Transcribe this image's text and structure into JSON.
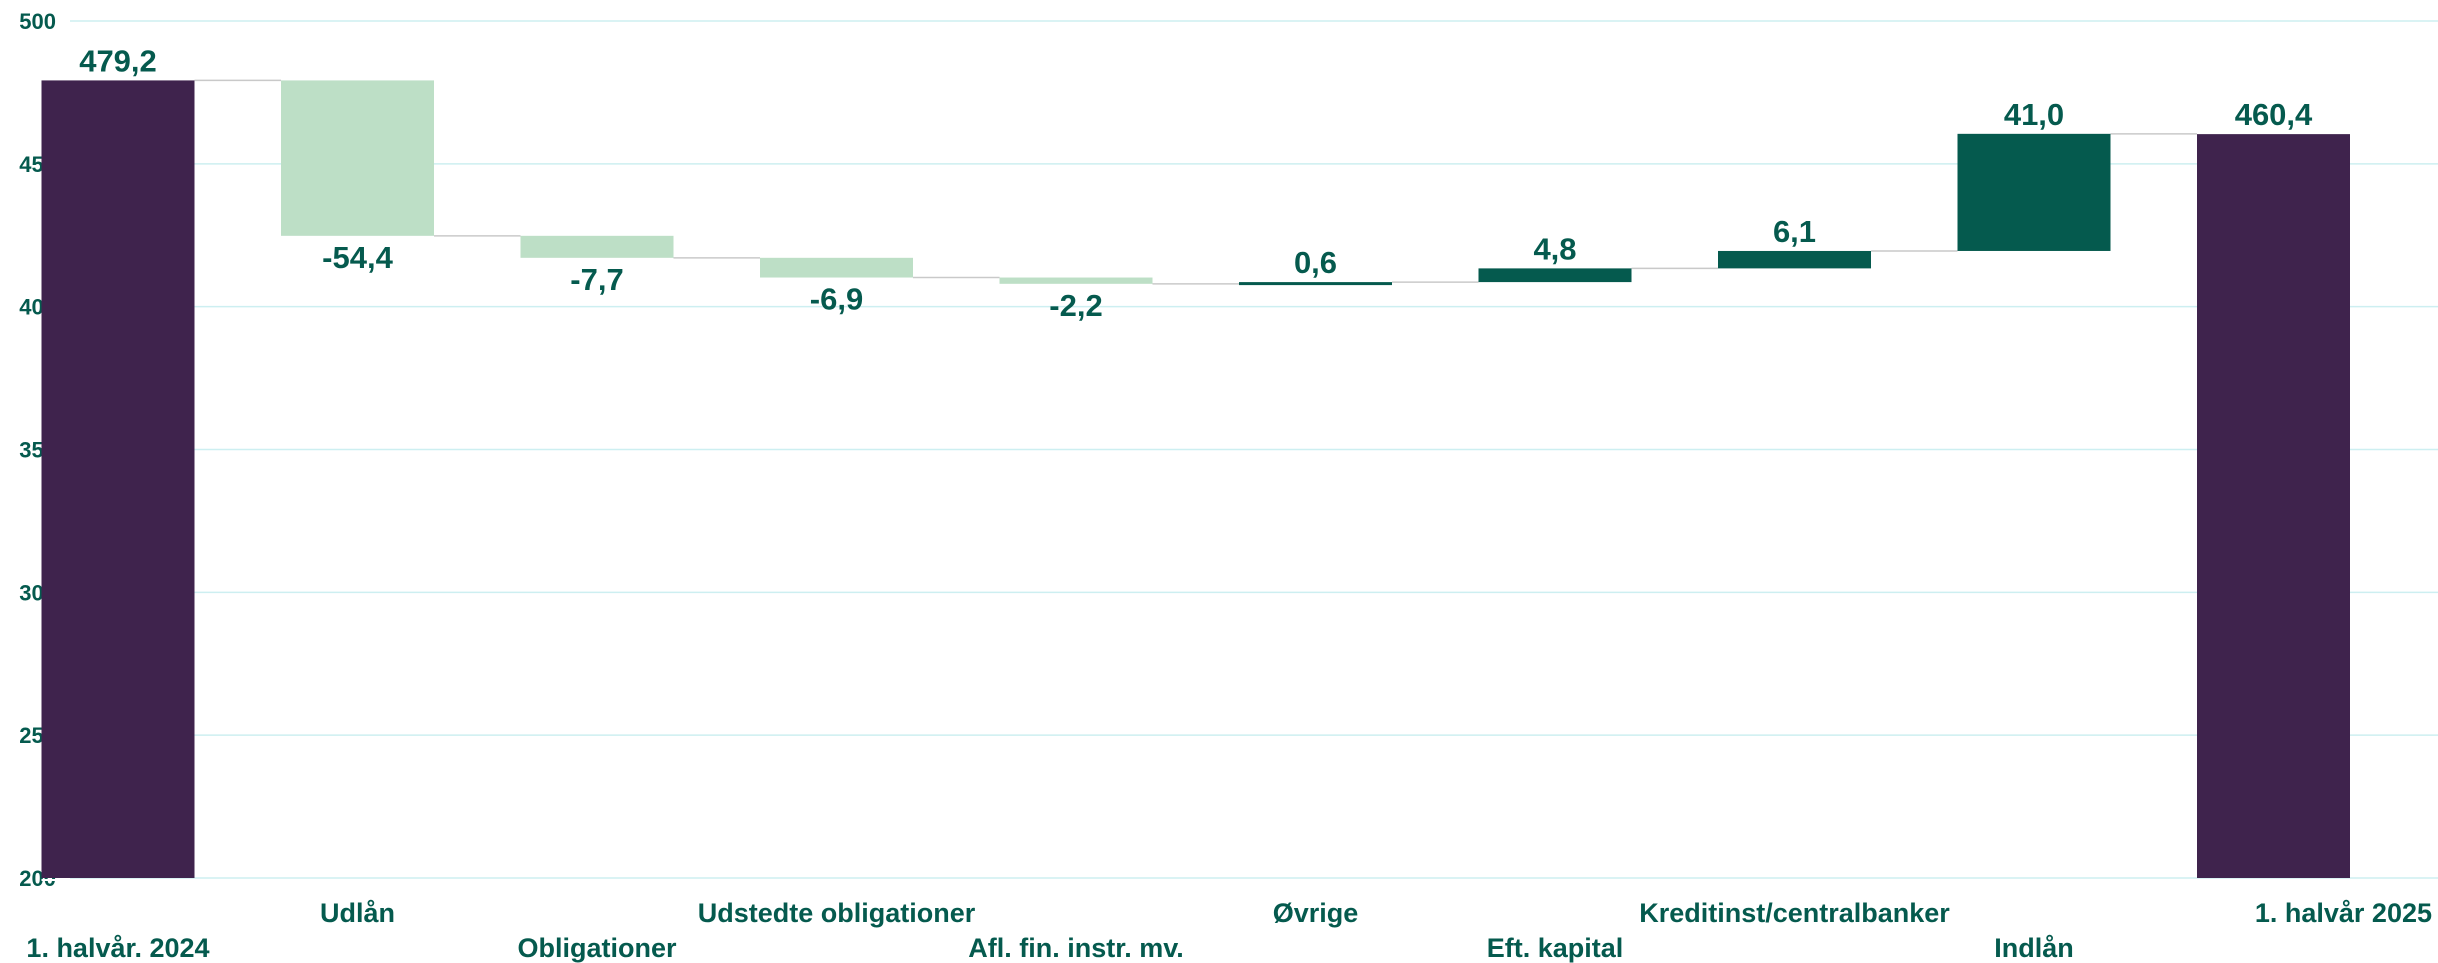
{
  "chart_data": {
    "type": "waterfall",
    "ylim": [
      200,
      500
    ],
    "yticks": [
      "200",
      "250",
      "300",
      "350",
      "400",
      "450",
      "500"
    ],
    "categories": [
      "1. halvår. 2024",
      "Udlån",
      "Obligationer",
      "Udstedte obligationer",
      "Afl. fin. instr. mv.",
      "Øvrige",
      "Eft. kapital",
      "Kreditinst/centralbanker",
      "Indlån",
      "1. halvår 2025"
    ],
    "values": [
      479.2,
      -54.4,
      -7.7,
      -6.9,
      -2.2,
      0.6,
      4.8,
      6.1,
      41.0,
      460.4
    ],
    "kinds": [
      "total",
      "delta",
      "delta",
      "delta",
      "delta",
      "delta",
      "delta",
      "delta",
      "delta",
      "total"
    ],
    "labels": [
      "479,2",
      "-54,4",
      "-7,7",
      "-6,9",
      "-2,2",
      "0,6",
      "4,8",
      "6,1",
      "41,0",
      "460,4"
    ],
    "colors": {
      "total": "#3f234d",
      "increase": "#055a4e",
      "decrease": "#bddfc6",
      "label": "#055a4e",
      "grid": "#cdeff1",
      "connector": "#c9c9c9"
    },
    "grid": true,
    "legend": "none"
  }
}
